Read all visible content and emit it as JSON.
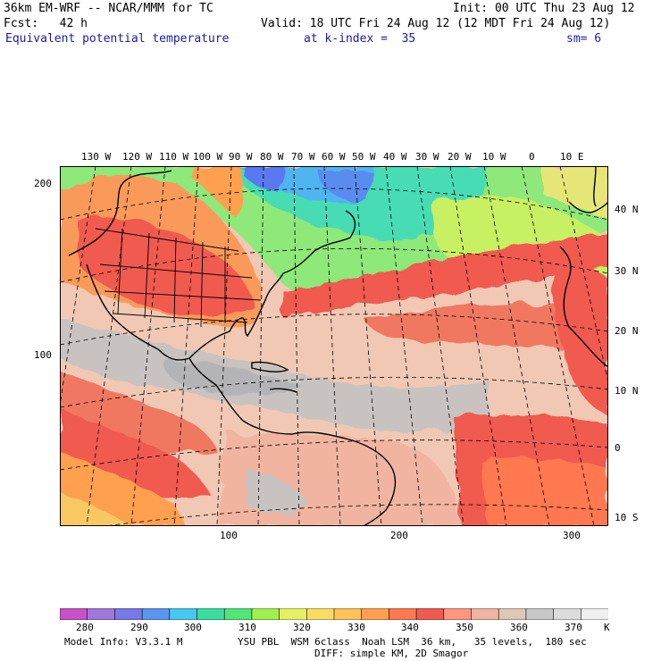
{
  "header": {
    "model": "36km EM-WRF -- NCAR/MMM for TC",
    "init": "Init: 00 UTC Thu 23 Aug 12",
    "fcst": "Fcst:   42 h",
    "valid": "Valid: 18 UTC Fri 24 Aug 12 (12 MDT Fri 24 Aug 12)",
    "field": "Equivalent potential temperature",
    "level": "at k-index =  35",
    "smooth": "sm= 6"
  },
  "map": {
    "lon_labels": [
      "130 W",
      "120 W",
      "110 W",
      "100 W",
      "90 W",
      "80 W",
      "70 W",
      "60 W",
      "50 W",
      "40 W",
      "30 W",
      "20 W",
      "10 W",
      "0",
      "10 E"
    ],
    "lat_labels": [
      "40 N",
      "30 N",
      "20 N",
      "10 N",
      "0",
      "10 S"
    ],
    "y_grid_labels": [
      "200",
      "100"
    ],
    "x_grid_labels": [
      "100",
      "200",
      "300"
    ]
  },
  "colorbar": {
    "unit": "K",
    "tick_labels": [
      "280",
      "290",
      "300",
      "310",
      "320",
      "330",
      "340",
      "350",
      "360",
      "370"
    ],
    "colors": [
      "#c850c8",
      "#a078dc",
      "#7878e6",
      "#5a96f0",
      "#46c8f0",
      "#3cdca0",
      "#50e678",
      "#a0f050",
      "#e6f064",
      "#fadc64",
      "#ffc35a",
      "#ffa050",
      "#ff7850",
      "#f05a50",
      "#ff9680",
      "#f0b4a0",
      "#dcc8b4",
      "#c8c8c8",
      "#dcdcdc",
      "#f0f0f0"
    ]
  },
  "footer": {
    "model_info": "Model Info: V3.3.1 M",
    "physics": "YSU PBL  WSM 6class  Noah LSM  36 km,   35 levels,  180 sec",
    "diffusion": "DIFF: simple KM, 2D Smagor"
  }
}
